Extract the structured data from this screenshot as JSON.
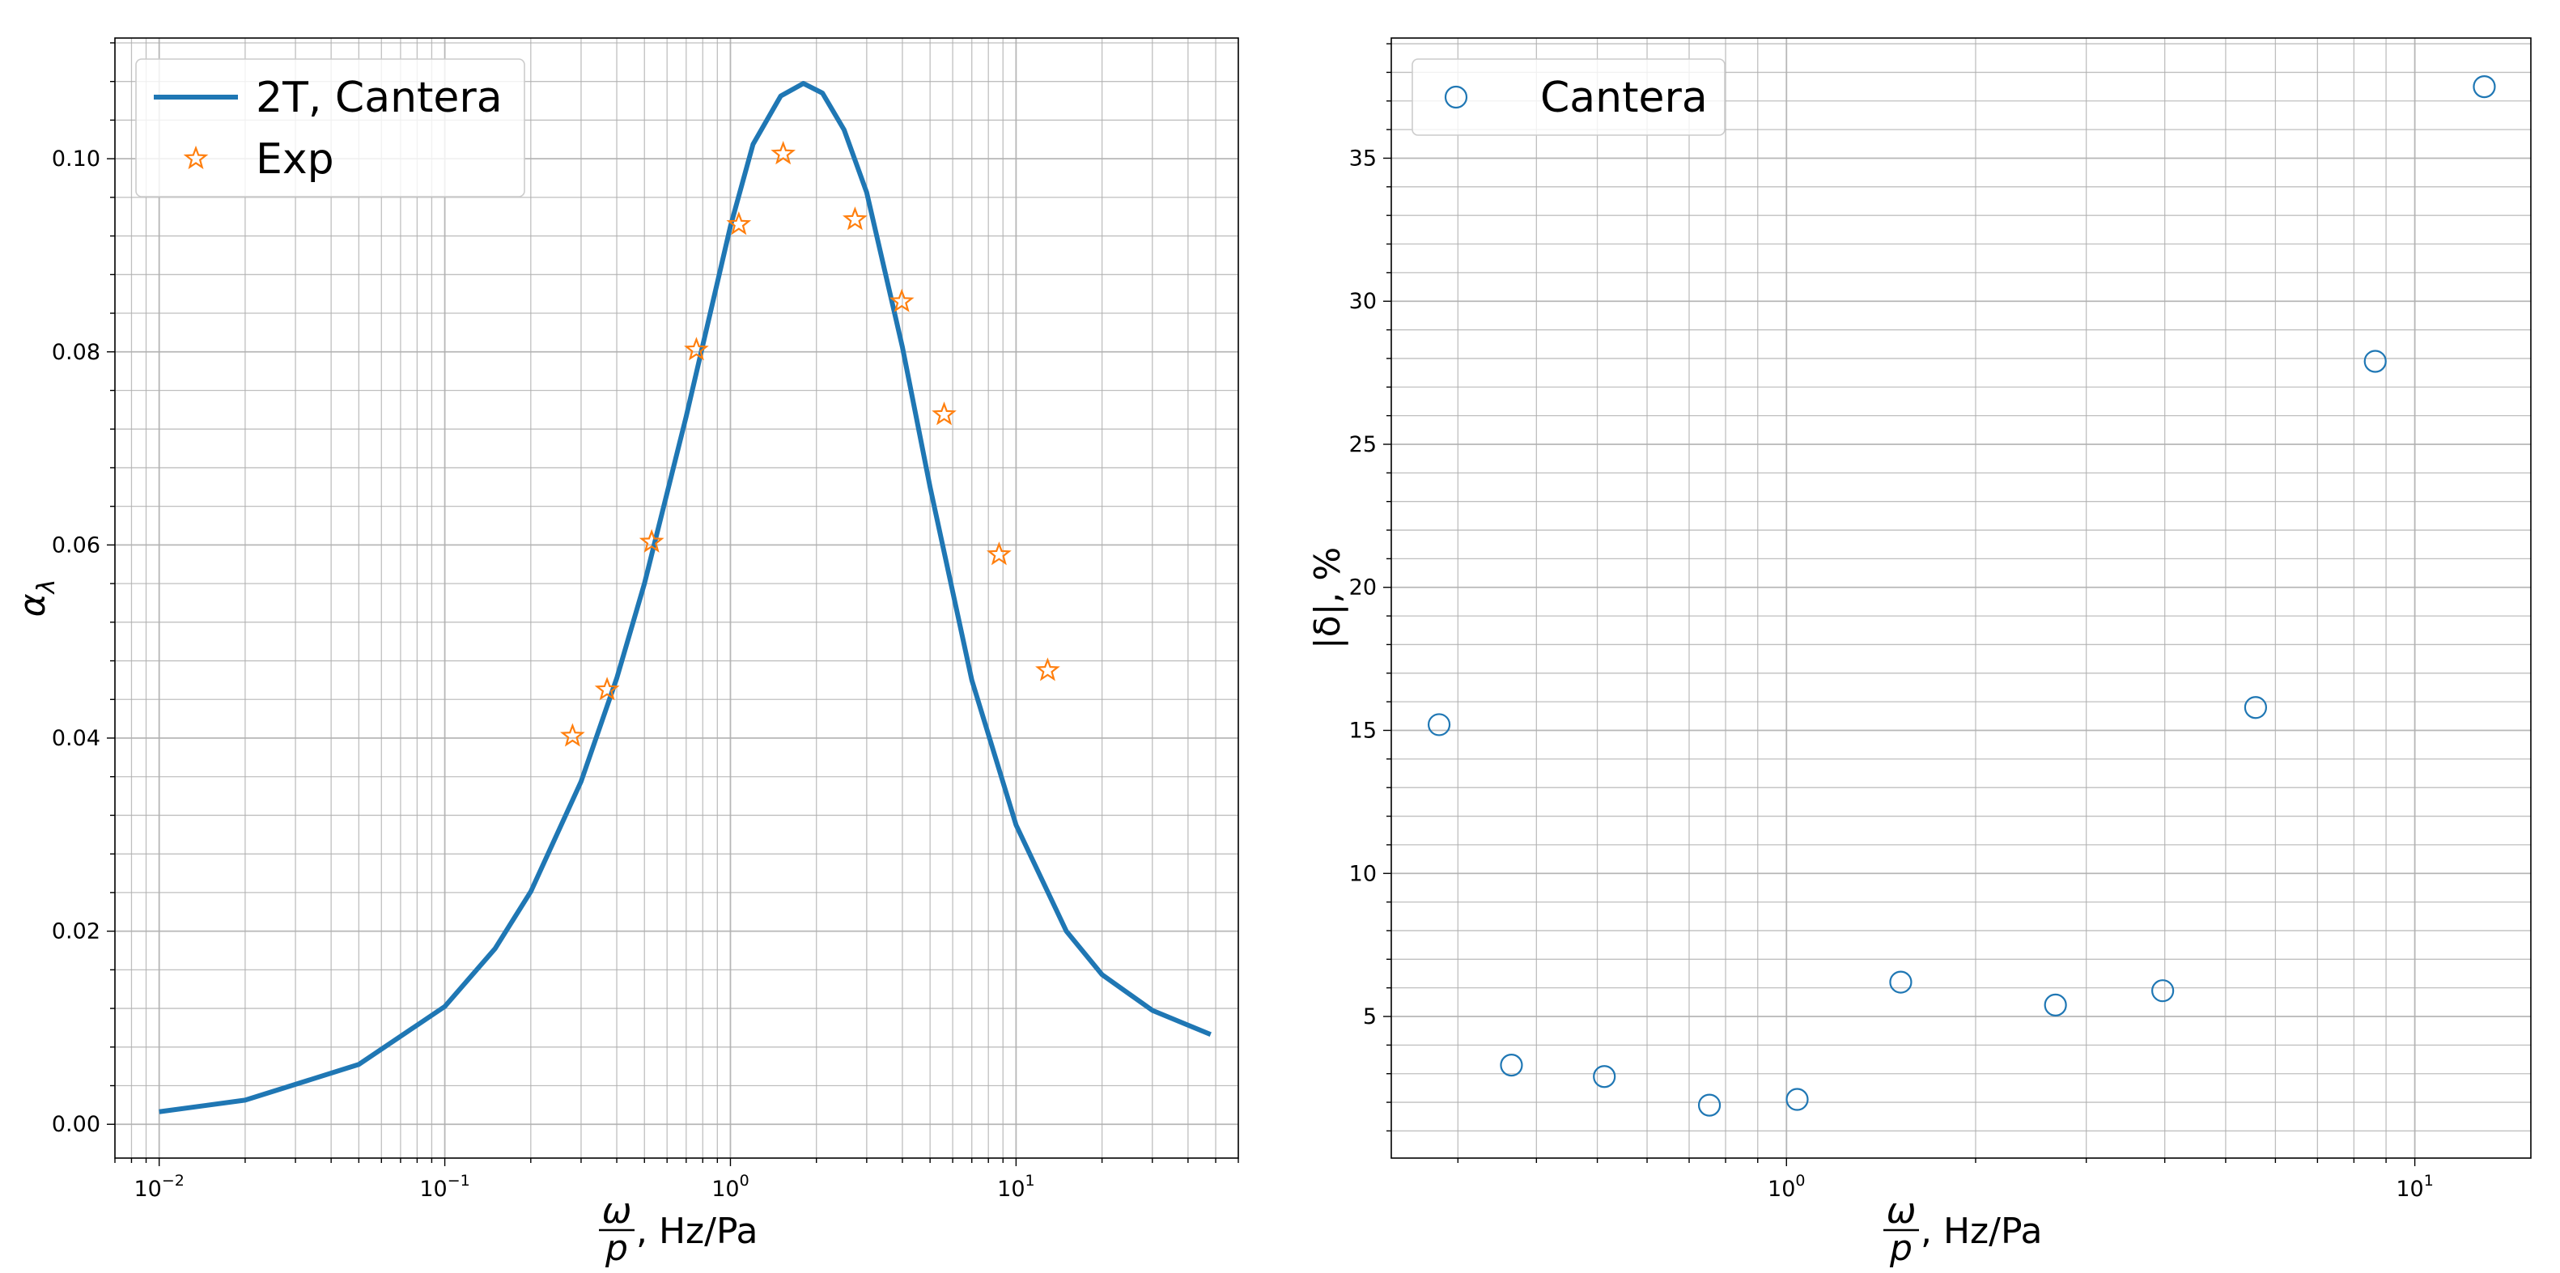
{
  "figure": {
    "background": "#ffffff",
    "grid_color": "#b0b0b0",
    "series_color_blue": "#1f77b4",
    "series_color_orange": "#ff7f0e"
  },
  "chart_data": [
    {
      "type": "line",
      "x_scale": "log",
      "y_scale": "linear",
      "xlim": [
        0.007,
        60
      ],
      "ylim": [
        -0.0035,
        0.1125
      ],
      "xlabel": {
        "fraction_top": "ω",
        "fraction_bottom": "p",
        "unit": ", Hz/Pa"
      },
      "ylabel": "α",
      "ylabel_sub": "λ",
      "x_ticks": [
        {
          "value": 0.01,
          "base": "10",
          "exp": "−2"
        },
        {
          "value": 0.1,
          "base": "10",
          "exp": "−1"
        },
        {
          "value": 1,
          "base": "10",
          "exp": "0"
        },
        {
          "value": 10,
          "base": "10",
          "exp": "1"
        }
      ],
      "y_ticks": [
        {
          "value": 0.0,
          "label": "0.00"
        },
        {
          "value": 0.02,
          "label": "0.02"
        },
        {
          "value": 0.04,
          "label": "0.04"
        },
        {
          "value": 0.06,
          "label": "0.06"
        },
        {
          "value": 0.08,
          "label": "0.08"
        },
        {
          "value": 0.1,
          "label": "0.10"
        }
      ],
      "grid": true,
      "legend": "upper left",
      "series": [
        {
          "name": "2T, Cantera",
          "kind": "line",
          "color": "#1f77b4",
          "x": [
            0.01,
            0.02,
            0.05,
            0.1,
            0.15,
            0.2,
            0.3,
            0.4,
            0.5,
            0.7,
            1.0,
            1.2,
            1.5,
            1.8,
            2.1,
            2.5,
            3.0,
            4.0,
            5.0,
            7.0,
            10.0,
            15.0,
            20.0,
            30.0,
            48.0
          ],
          "y": [
            0.0013,
            0.0025,
            0.0062,
            0.0122,
            0.0182,
            0.0241,
            0.0355,
            0.0462,
            0.056,
            0.0733,
            0.093,
            0.1015,
            0.1065,
            0.1078,
            0.1068,
            0.103,
            0.0965,
            0.0805,
            0.066,
            0.046,
            0.031,
            0.02,
            0.0155,
            0.0118,
            0.0093
          ]
        },
        {
          "name": "Exp",
          "kind": "markers",
          "marker": "star",
          "color": "#ff7f0e",
          "x": [
            0.28,
            0.37,
            0.53,
            0.76,
            1.07,
            1.53,
            2.73,
            3.98,
            5.6,
            8.72,
            12.9
          ],
          "y": [
            0.0402,
            0.045,
            0.0603,
            0.0802,
            0.0932,
            0.1005,
            0.0937,
            0.0852,
            0.0735,
            0.059,
            0.047
          ]
        }
      ]
    },
    {
      "type": "scatter",
      "x_scale": "log",
      "y_scale": "linear",
      "xlim": [
        0.235,
        15.3
      ],
      "ylim": [
        0.05,
        39.2
      ],
      "xlabel": {
        "fraction_top": "ω",
        "fraction_bottom": "p",
        "unit": ", Hz/Pa"
      },
      "ylabel": "|δ|, %",
      "x_ticks": [
        {
          "value": 1,
          "base": "10",
          "exp": "0"
        },
        {
          "value": 10,
          "base": "10",
          "exp": "1"
        }
      ],
      "y_ticks": [
        {
          "value": 5,
          "label": "5"
        },
        {
          "value": 10,
          "label": "10"
        },
        {
          "value": 15,
          "label": "15"
        },
        {
          "value": 20,
          "label": "20"
        },
        {
          "value": 25,
          "label": "25"
        },
        {
          "value": 30,
          "label": "30"
        },
        {
          "value": 35,
          "label": "35"
        }
      ],
      "grid": true,
      "legend": "upper left",
      "series": [
        {
          "name": "Cantera",
          "kind": "markers",
          "marker": "open-circle",
          "color": "#1f77b4",
          "x": [
            0.28,
            0.365,
            0.513,
            0.754,
            1.04,
            1.52,
            2.68,
            3.97,
            5.58,
            8.65,
            12.9
          ],
          "y": [
            15.2,
            3.3,
            2.9,
            1.9,
            2.1,
            6.2,
            5.4,
            5.9,
            15.8,
            27.9,
            37.5
          ]
        }
      ]
    }
  ]
}
